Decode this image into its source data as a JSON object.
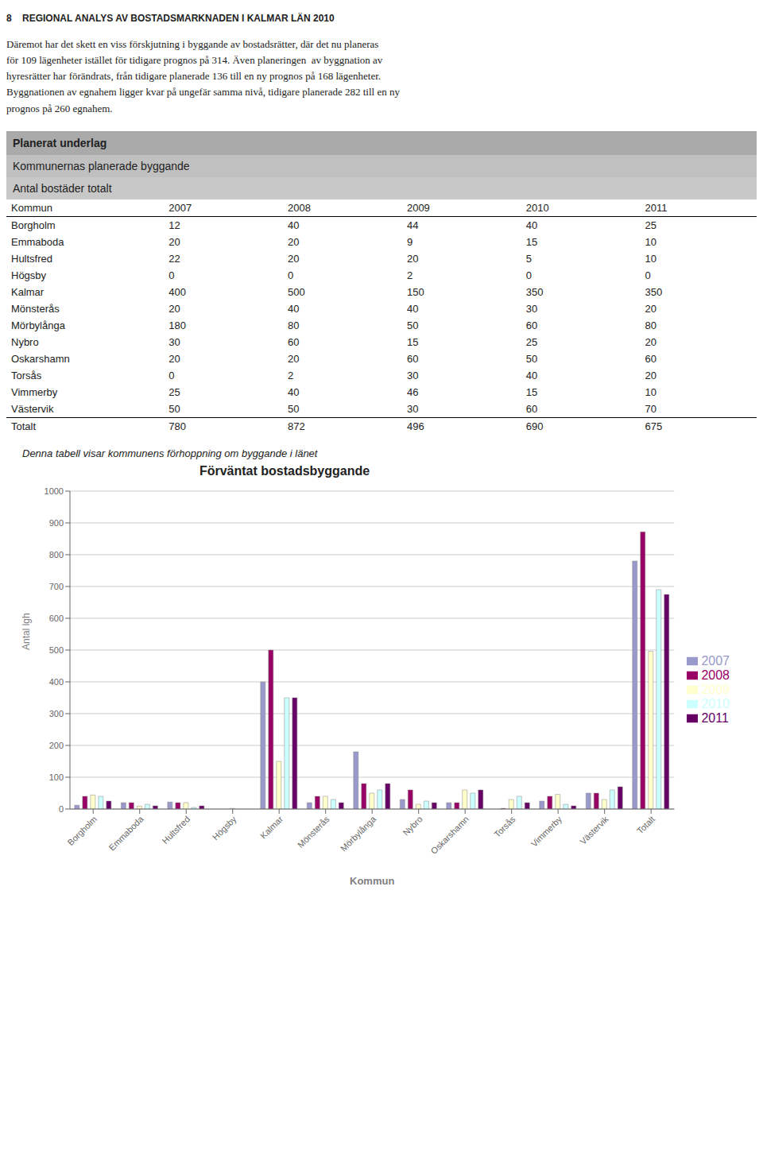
{
  "chart_data": {
    "type": "bar",
    "title": "Förväntat bostadsbyggande",
    "subtitle": "Denna tabell visar kommunens förhoppning om byggande i länet",
    "annotations": [
      "8    REGIONAL ANALYS AV BOSTADSMARKNADEN I KALMAR LÄN 2010",
      "Däremot har det skett en viss förskjutning i byggande av bostadsrätter, där det nu planeras\nför 109 lägenheter istället för tidigare prognos på 314. Även planeringen  av byggnation av\nhyresrätter har förändrats, från tidigare planerade 136 till en ny prognos på 168 lägenheter.\nByggnationen av egnahem ligger kvar på ungefär samma nivå, tidigare planerade 282 till en ny\nprognos på 260 egnahem.",
      "Planerat underlag",
      "Kommunernas planerade byggande",
      "Antal bostäder totalt"
    ],
    "xlabel": "Kommun",
    "ylabel": "Antal lgh",
    "categories": [
      "Borgholm",
      "Emmaboda",
      "Hultsfred",
      "Högsby",
      "Kalmar",
      "Mönsterås",
      "Mörbylånga",
      "Nybro",
      "Oskarshamn",
      "Torsås",
      "Vimmerby",
      "Västervik",
      "Totalt"
    ],
    "series": [
      {
        "name": "2007",
        "color": "#9999CC",
        "values": [
          12,
          20,
          22,
          0,
          400,
          20,
          180,
          30,
          20,
          0,
          25,
          50,
          780
        ]
      },
      {
        "name": "2008",
        "color": "#990066",
        "values": [
          40,
          20,
          20,
          0,
          500,
          40,
          80,
          60,
          20,
          2,
          40,
          50,
          872
        ]
      },
      {
        "name": "2009",
        "color": "#FFFFCC",
        "values": [
          44,
          9,
          20,
          2,
          150,
          40,
          50,
          15,
          60,
          30,
          46,
          30,
          496
        ]
      },
      {
        "name": "2010",
        "color": "#CCFFFF",
        "values": [
          40,
          15,
          5,
          0,
          350,
          30,
          60,
          25,
          50,
          40,
          15,
          60,
          690
        ]
      },
      {
        "name": "2011",
        "color": "#660066",
        "values": [
          25,
          10,
          10,
          0,
          350,
          20,
          80,
          20,
          60,
          20,
          10,
          70,
          675
        ]
      }
    ],
    "ylim": [
      0,
      1000
    ],
    "yticks": [
      0,
      100,
      200,
      300,
      400,
      500,
      600,
      700,
      800,
      900,
      1000
    ],
    "grid": true,
    "legend": "right"
  }
}
